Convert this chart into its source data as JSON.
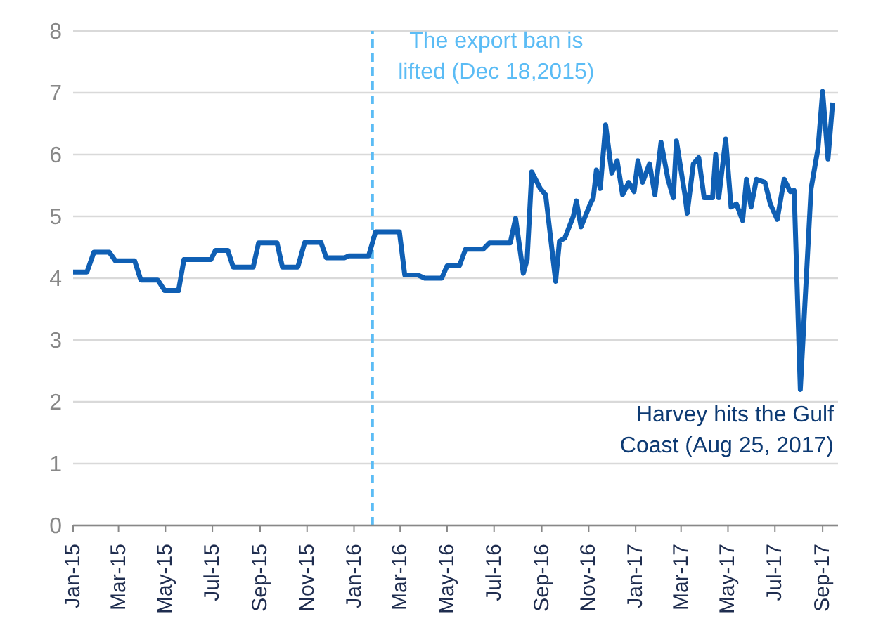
{
  "chart_data": {
    "type": "line",
    "x": [
      "2015-01-01",
      "2015-01-19",
      "2015-01-28",
      "2015-02-17",
      "2015-02-25",
      "2015-03-22",
      "2015-03-30",
      "2015-04-21",
      "2015-04-30",
      "2015-05-18",
      "2015-05-25",
      "2015-06-29",
      "2015-07-05",
      "2015-07-21",
      "2015-07-28",
      "2015-08-23",
      "2015-08-30",
      "2015-09-23",
      "2015-09-30",
      "2015-10-20",
      "2015-10-29",
      "2015-11-19",
      "2015-11-26",
      "2015-12-20",
      "2015-12-25",
      "2016-01-20",
      "2016-01-29",
      "2016-02-29",
      "2016-03-07",
      "2016-03-24",
      "2016-04-02",
      "2016-04-24",
      "2016-05-01",
      "2016-05-17",
      "2016-05-25",
      "2016-06-17",
      "2016-06-25",
      "2016-07-22",
      "2016-07-29",
      "2016-08-08",
      "2016-08-13",
      "2016-08-19",
      "2016-08-30",
      "2016-09-06",
      "2016-09-19",
      "2016-09-24",
      "2016-10-01",
      "2016-10-12",
      "2016-10-16",
      "2016-10-22",
      "2016-11-03",
      "2016-11-07",
      "2016-11-11",
      "2016-11-16",
      "2016-11-23",
      "2016-12-01",
      "2016-12-08",
      "2016-12-15",
      "2016-12-23",
      "2016-12-30",
      "2017-01-04",
      "2017-01-10",
      "2017-01-19",
      "2017-01-26",
      "2017-02-03",
      "2017-02-12",
      "2017-02-19",
      "2017-02-23",
      "2017-03-06",
      "2017-03-09",
      "2017-03-17",
      "2017-03-24",
      "2017-03-31",
      "2017-04-11",
      "2017-04-15",
      "2017-04-19",
      "2017-04-28",
      "2017-05-05",
      "2017-05-12",
      "2017-05-20",
      "2017-05-25",
      "2017-05-31",
      "2017-06-07",
      "2017-06-18",
      "2017-06-25",
      "2017-07-04",
      "2017-07-13",
      "2017-07-21",
      "2017-07-26",
      "2017-08-03",
      "2017-08-17",
      "2017-08-26",
      "2017-09-01",
      "2017-09-08",
      "2017-09-14"
    ],
    "series": [
      {
        "color": "#0f5fb4",
        "values": [
          4.1,
          4.1,
          4.42,
          4.42,
          4.28,
          4.28,
          3.97,
          3.97,
          3.8,
          3.8,
          4.3,
          4.3,
          4.45,
          4.45,
          4.18,
          4.18,
          4.57,
          4.57,
          4.18,
          4.18,
          4.58,
          4.58,
          4.33,
          4.33,
          4.36,
          4.36,
          4.75,
          4.75,
          4.05,
          4.05,
          4.0,
          4.0,
          4.2,
          4.2,
          4.47,
          4.47,
          4.57,
          4.57,
          4.97,
          4.08,
          4.3,
          5.72,
          5.45,
          5.35,
          3.95,
          4.6,
          4.65,
          5.0,
          5.25,
          4.83,
          5.2,
          5.3,
          5.75,
          5.45,
          6.48,
          5.7,
          5.9,
          5.35,
          5.55,
          5.4,
          5.9,
          5.55,
          5.85,
          5.35,
          6.2,
          5.6,
          5.3,
          6.22,
          5.35,
          5.05,
          5.85,
          5.95,
          5.3,
          5.3,
          6.0,
          5.3,
          6.25,
          5.15,
          5.2,
          4.93,
          5.6,
          5.15,
          5.6,
          5.55,
          5.2,
          4.95,
          5.6,
          5.4,
          5.42,
          2.2,
          5.45,
          6.1,
          7.02,
          5.93,
          6.84
        ]
      }
    ],
    "xlim": [
      "2015-01-01",
      "2017-09-21"
    ],
    "xticks": [
      {
        "value": "2015-01-01",
        "label": "Jan-15"
      },
      {
        "value": "2015-03-01",
        "label": "Mar-15"
      },
      {
        "value": "2015-05-01",
        "label": "May-15"
      },
      {
        "value": "2015-07-01",
        "label": "Jul-15"
      },
      {
        "value": "2015-09-01",
        "label": "Sep-15"
      },
      {
        "value": "2015-11-01",
        "label": "Nov-15"
      },
      {
        "value": "2016-01-01",
        "label": "Jan-16"
      },
      {
        "value": "2016-03-01",
        "label": "Mar-16"
      },
      {
        "value": "2016-05-01",
        "label": "May-16"
      },
      {
        "value": "2016-07-01",
        "label": "Jul-16"
      },
      {
        "value": "2016-09-01",
        "label": "Sep-16"
      },
      {
        "value": "2016-11-01",
        "label": "Nov-16"
      },
      {
        "value": "2017-01-01",
        "label": "Jan-17"
      },
      {
        "value": "2017-03-01",
        "label": "Mar-17"
      },
      {
        "value": "2017-05-01",
        "label": "May-17"
      },
      {
        "value": "2017-07-01",
        "label": "Jul-17"
      },
      {
        "value": "2017-09-01",
        "label": "Sep-17"
      }
    ],
    "ylim": [
      0,
      8
    ],
    "yticks": [
      0,
      1,
      2,
      3,
      4,
      5,
      6,
      7,
      8
    ],
    "grid": "y",
    "marker": "none",
    "line_style": "solid",
    "ref_lines": [
      {
        "axis": "x",
        "value": "2016-01-25",
        "label": "The export ban is lifted (Dec 18,2015)",
        "color": "#5bbcf5",
        "line_style": "dashed"
      }
    ],
    "annotations": [
      "Harvey hits the Gulf Coast (Aug 25, 2017)"
    ]
  }
}
